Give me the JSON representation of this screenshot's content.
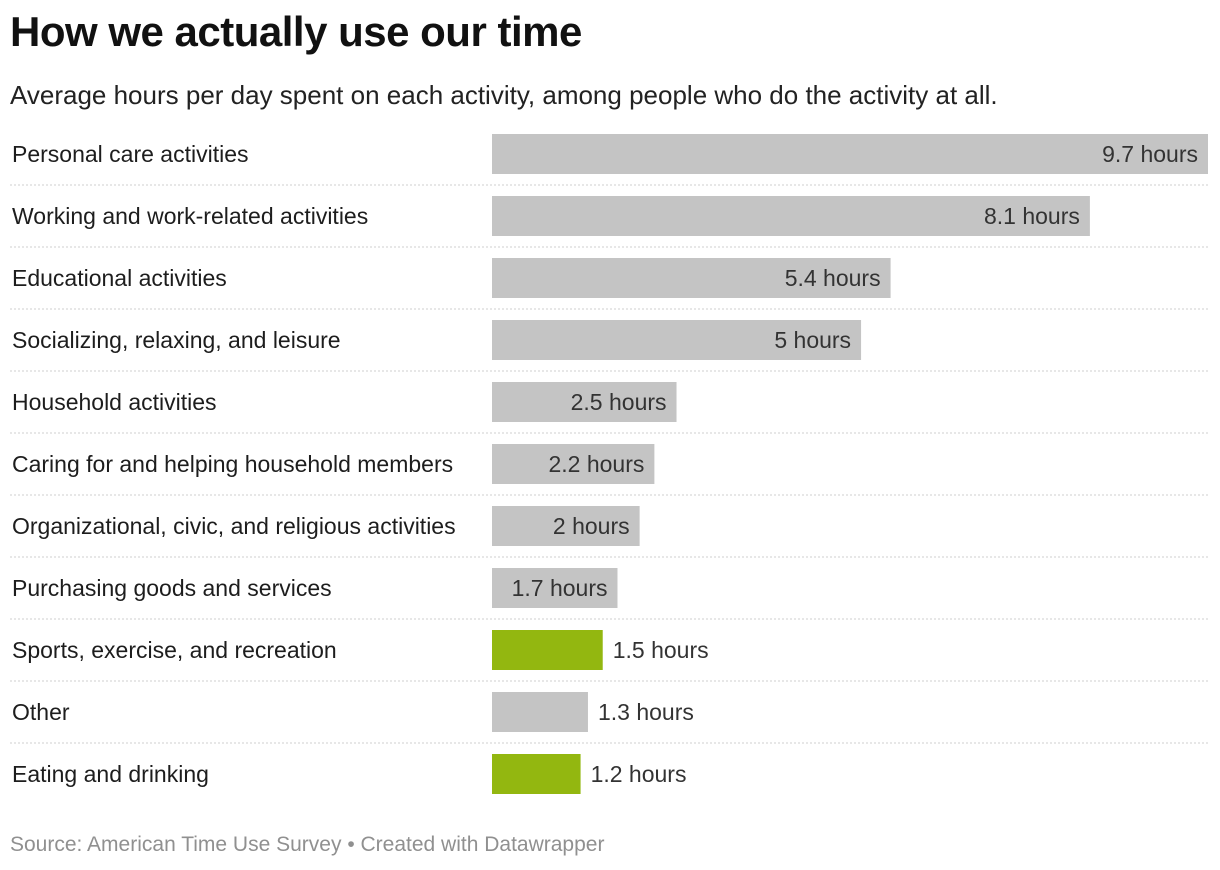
{
  "title": "How we actually use our time",
  "subtitle": "Average hours per day spent on each activity, among people who do the activity at all.",
  "footer": {
    "source": "Source: American Time Use Survey",
    "separator": "•",
    "credit": "Created with Datawrapper"
  },
  "colors": {
    "bar_default": "#c4c4c4",
    "bar_highlight": "#93b710",
    "divider": "#cfcfcf"
  },
  "chart_data": {
    "type": "bar",
    "orientation": "horizontal",
    "title": "How we actually use our time",
    "xlabel": "",
    "ylabel": "",
    "unit": "hours",
    "xlim": [
      0,
      9.7
    ],
    "grid": false,
    "legend": "none",
    "categories": [
      "Personal care activities",
      "Working and work-related activities",
      "Educational activities",
      "Socializing, relaxing, and leisure",
      "Household activities",
      "Caring for and helping household members",
      "Organizational, civic, and religious activities",
      "Purchasing goods and services",
      "Sports, exercise, and recreation",
      "Other",
      "Eating and drinking"
    ],
    "values": [
      9.7,
      8.1,
      5.4,
      5,
      2.5,
      2.2,
      2,
      1.7,
      1.5,
      1.3,
      1.2
    ],
    "value_labels": [
      "9.7 hours",
      "8.1 hours",
      "5.4 hours",
      "5 hours",
      "2.5 hours",
      "2.2 hours",
      "2 hours",
      "1.7 hours",
      "1.5 hours",
      "1.3 hours",
      "1.2 hours"
    ],
    "highlighted": [
      false,
      false,
      false,
      false,
      false,
      false,
      false,
      false,
      true,
      false,
      true
    ]
  }
}
